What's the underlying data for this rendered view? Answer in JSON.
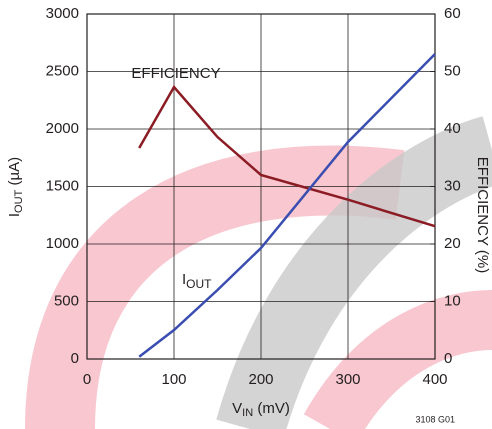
{
  "chart_data": {
    "type": "line",
    "x": [
      60,
      100,
      150,
      200,
      300,
      400
    ],
    "series": [
      {
        "name": "EFFICIENCY",
        "color": "#8b1c24",
        "axis": "y2",
        "values": [
          36.7,
          47.3,
          38.6,
          32,
          27.7,
          23.1
        ]
      },
      {
        "name": "IOUT",
        "color": "#3a4db0",
        "values": [
          20,
          252,
          600,
          965,
          1887,
          2652
        ]
      }
    ],
    "annotations": {
      "efficiency": "EFFICIENCY",
      "iout_main": "I",
      "iout_sub": "OUT"
    },
    "x_label": {
      "main": "V",
      "sub": "IN",
      "unit": " (mV)"
    },
    "y_label": {
      "main": "I",
      "sub": "OUT",
      "unit": " (µA)"
    },
    "y2_label": "EFFICIENCY (%)",
    "footnote": "3108 G01",
    "xlim": [
      0,
      400
    ],
    "xticks": [
      0,
      100,
      200,
      300,
      400
    ],
    "ylim": [
      0,
      3000
    ],
    "yticks": [
      0,
      500,
      1000,
      1500,
      2000,
      2500,
      3000
    ],
    "y2lim": [
      0,
      60
    ],
    "y2ticks": [
      0,
      10,
      20,
      30,
      40,
      50,
      60
    ],
    "grid": true
  }
}
